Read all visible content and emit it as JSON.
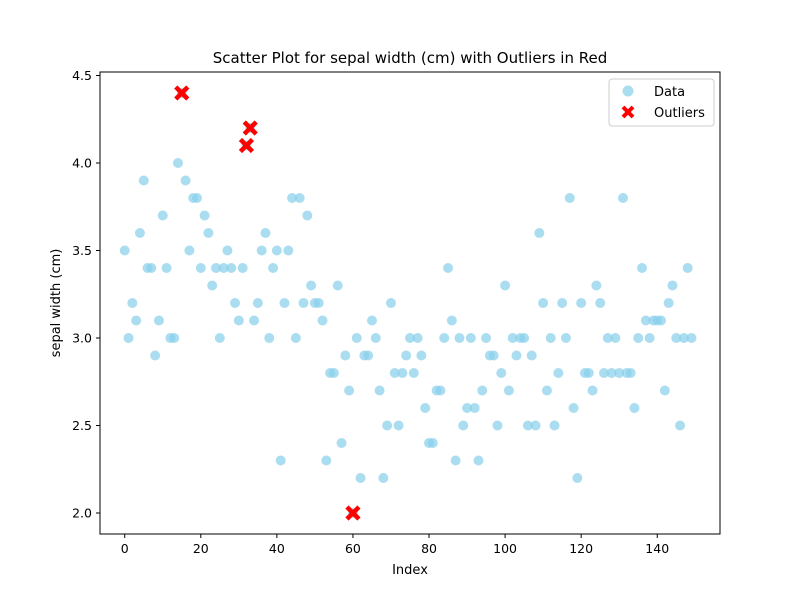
{
  "chart_data": {
    "type": "scatter",
    "title": "Scatter Plot for sepal width (cm) with Outliers in Red",
    "xlabel": "Index",
    "ylabel": "sepal width (cm)",
    "xlim": [
      -6.5,
      156.5
    ],
    "ylim": [
      1.88,
      4.52
    ],
    "xticks": [
      0,
      20,
      40,
      60,
      80,
      100,
      120,
      140
    ],
    "yticks": [
      2.0,
      2.5,
      3.0,
      3.5,
      4.0,
      4.5
    ],
    "grid": false,
    "legend_position": "top-right",
    "colors": {
      "data": "#87ceeb",
      "outliers": "#ff0000"
    },
    "series": [
      {
        "name": "Data",
        "marker": "circle",
        "y": [
          3.5,
          3.0,
          3.2,
          3.1,
          3.6,
          3.9,
          3.4,
          3.4,
          2.9,
          3.1,
          3.7,
          3.4,
          3.0,
          3.0,
          4.0,
          4.4,
          3.9,
          3.5,
          3.8,
          3.8,
          3.4,
          3.7,
          3.6,
          3.3,
          3.4,
          3.0,
          3.4,
          3.5,
          3.4,
          3.2,
          3.1,
          3.4,
          4.1,
          4.2,
          3.1,
          3.2,
          3.5,
          3.6,
          3.0,
          3.4,
          3.5,
          2.3,
          3.2,
          3.5,
          3.8,
          3.0,
          3.8,
          3.2,
          3.7,
          3.3,
          3.2,
          3.2,
          3.1,
          2.3,
          2.8,
          2.8,
          3.3,
          2.4,
          2.9,
          2.7,
          2.0,
          3.0,
          2.2,
          2.9,
          2.9,
          3.1,
          3.0,
          2.7,
          2.2,
          2.5,
          3.2,
          2.8,
          2.5,
          2.8,
          2.9,
          3.0,
          2.8,
          3.0,
          2.9,
          2.6,
          2.4,
          2.4,
          2.7,
          2.7,
          3.0,
          3.4,
          3.1,
          2.3,
          3.0,
          2.5,
          2.6,
          3.0,
          2.6,
          2.3,
          2.7,
          3.0,
          2.9,
          2.9,
          2.5,
          2.8,
          3.3,
          2.7,
          3.0,
          2.9,
          3.0,
          3.0,
          2.5,
          2.9,
          2.5,
          3.6,
          3.2,
          2.7,
          3.0,
          2.5,
          2.8,
          3.2,
          3.0,
          3.8,
          2.6,
          2.2,
          3.2,
          2.8,
          2.8,
          2.7,
          3.3,
          3.2,
          2.8,
          3.0,
          2.8,
          3.0,
          2.8,
          3.8,
          2.8,
          2.8,
          2.6,
          3.0,
          3.4,
          3.1,
          3.0,
          3.1,
          3.1,
          3.1,
          2.7,
          3.2,
          3.3,
          3.0,
          2.5,
          3.0,
          3.4,
          3.0
        ]
      },
      {
        "name": "Outliers",
        "marker": "x",
        "points": [
          {
            "x": 15,
            "y": 4.4
          },
          {
            "x": 32,
            "y": 4.1
          },
          {
            "x": 33,
            "y": 4.2
          },
          {
            "x": 60,
            "y": 2.0
          }
        ]
      }
    ]
  }
}
